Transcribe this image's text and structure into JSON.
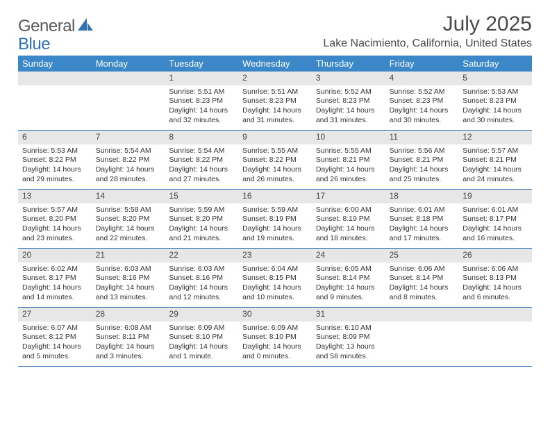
{
  "logo": {
    "text1": "General",
    "text2": "Blue"
  },
  "title": "July 2025",
  "location": "Lake Nacimiento, California, United States",
  "colors": {
    "header_bg": "#3b87c8",
    "header_text": "#ffffff",
    "dayrow_bg": "#e7e7e7",
    "divider": "#2e72b5",
    "body_text": "#333333",
    "logo_gray": "#5a5a5a",
    "logo_blue": "#2e72b5"
  },
  "typography": {
    "title_fontsize": 30,
    "location_fontsize": 16,
    "header_fontsize": 13,
    "daynum_fontsize": 12,
    "body_fontsize": 10.5
  },
  "day_names": [
    "Sunday",
    "Monday",
    "Tuesday",
    "Wednesday",
    "Thursday",
    "Friday",
    "Saturday"
  ],
  "weeks": [
    [
      {
        "num": "",
        "sunrise": "",
        "sunset": "",
        "daylight": ""
      },
      {
        "num": "",
        "sunrise": "",
        "sunset": "",
        "daylight": ""
      },
      {
        "num": "1",
        "sunrise": "Sunrise: 5:51 AM",
        "sunset": "Sunset: 8:23 PM",
        "daylight": "Daylight: 14 hours and 32 minutes."
      },
      {
        "num": "2",
        "sunrise": "Sunrise: 5:51 AM",
        "sunset": "Sunset: 8:23 PM",
        "daylight": "Daylight: 14 hours and 31 minutes."
      },
      {
        "num": "3",
        "sunrise": "Sunrise: 5:52 AM",
        "sunset": "Sunset: 8:23 PM",
        "daylight": "Daylight: 14 hours and 31 minutes."
      },
      {
        "num": "4",
        "sunrise": "Sunrise: 5:52 AM",
        "sunset": "Sunset: 8:23 PM",
        "daylight": "Daylight: 14 hours and 30 minutes."
      },
      {
        "num": "5",
        "sunrise": "Sunrise: 5:53 AM",
        "sunset": "Sunset: 8:23 PM",
        "daylight": "Daylight: 14 hours and 30 minutes."
      }
    ],
    [
      {
        "num": "6",
        "sunrise": "Sunrise: 5:53 AM",
        "sunset": "Sunset: 8:22 PM",
        "daylight": "Daylight: 14 hours and 29 minutes."
      },
      {
        "num": "7",
        "sunrise": "Sunrise: 5:54 AM",
        "sunset": "Sunset: 8:22 PM",
        "daylight": "Daylight: 14 hours and 28 minutes."
      },
      {
        "num": "8",
        "sunrise": "Sunrise: 5:54 AM",
        "sunset": "Sunset: 8:22 PM",
        "daylight": "Daylight: 14 hours and 27 minutes."
      },
      {
        "num": "9",
        "sunrise": "Sunrise: 5:55 AM",
        "sunset": "Sunset: 8:22 PM",
        "daylight": "Daylight: 14 hours and 26 minutes."
      },
      {
        "num": "10",
        "sunrise": "Sunrise: 5:55 AM",
        "sunset": "Sunset: 8:21 PM",
        "daylight": "Daylight: 14 hours and 26 minutes."
      },
      {
        "num": "11",
        "sunrise": "Sunrise: 5:56 AM",
        "sunset": "Sunset: 8:21 PM",
        "daylight": "Daylight: 14 hours and 25 minutes."
      },
      {
        "num": "12",
        "sunrise": "Sunrise: 5:57 AM",
        "sunset": "Sunset: 8:21 PM",
        "daylight": "Daylight: 14 hours and 24 minutes."
      }
    ],
    [
      {
        "num": "13",
        "sunrise": "Sunrise: 5:57 AM",
        "sunset": "Sunset: 8:20 PM",
        "daylight": "Daylight: 14 hours and 23 minutes."
      },
      {
        "num": "14",
        "sunrise": "Sunrise: 5:58 AM",
        "sunset": "Sunset: 8:20 PM",
        "daylight": "Daylight: 14 hours and 22 minutes."
      },
      {
        "num": "15",
        "sunrise": "Sunrise: 5:59 AM",
        "sunset": "Sunset: 8:20 PM",
        "daylight": "Daylight: 14 hours and 21 minutes."
      },
      {
        "num": "16",
        "sunrise": "Sunrise: 5:59 AM",
        "sunset": "Sunset: 8:19 PM",
        "daylight": "Daylight: 14 hours and 19 minutes."
      },
      {
        "num": "17",
        "sunrise": "Sunrise: 6:00 AM",
        "sunset": "Sunset: 8:19 PM",
        "daylight": "Daylight: 14 hours and 18 minutes."
      },
      {
        "num": "18",
        "sunrise": "Sunrise: 6:01 AM",
        "sunset": "Sunset: 8:18 PM",
        "daylight": "Daylight: 14 hours and 17 minutes."
      },
      {
        "num": "19",
        "sunrise": "Sunrise: 6:01 AM",
        "sunset": "Sunset: 8:17 PM",
        "daylight": "Daylight: 14 hours and 16 minutes."
      }
    ],
    [
      {
        "num": "20",
        "sunrise": "Sunrise: 6:02 AM",
        "sunset": "Sunset: 8:17 PM",
        "daylight": "Daylight: 14 hours and 14 minutes."
      },
      {
        "num": "21",
        "sunrise": "Sunrise: 6:03 AM",
        "sunset": "Sunset: 8:16 PM",
        "daylight": "Daylight: 14 hours and 13 minutes."
      },
      {
        "num": "22",
        "sunrise": "Sunrise: 6:03 AM",
        "sunset": "Sunset: 8:16 PM",
        "daylight": "Daylight: 14 hours and 12 minutes."
      },
      {
        "num": "23",
        "sunrise": "Sunrise: 6:04 AM",
        "sunset": "Sunset: 8:15 PM",
        "daylight": "Daylight: 14 hours and 10 minutes."
      },
      {
        "num": "24",
        "sunrise": "Sunrise: 6:05 AM",
        "sunset": "Sunset: 8:14 PM",
        "daylight": "Daylight: 14 hours and 9 minutes."
      },
      {
        "num": "25",
        "sunrise": "Sunrise: 6:06 AM",
        "sunset": "Sunset: 8:14 PM",
        "daylight": "Daylight: 14 hours and 8 minutes."
      },
      {
        "num": "26",
        "sunrise": "Sunrise: 6:06 AM",
        "sunset": "Sunset: 8:13 PM",
        "daylight": "Daylight: 14 hours and 6 minutes."
      }
    ],
    [
      {
        "num": "27",
        "sunrise": "Sunrise: 6:07 AM",
        "sunset": "Sunset: 8:12 PM",
        "daylight": "Daylight: 14 hours and 5 minutes."
      },
      {
        "num": "28",
        "sunrise": "Sunrise: 6:08 AM",
        "sunset": "Sunset: 8:11 PM",
        "daylight": "Daylight: 14 hours and 3 minutes."
      },
      {
        "num": "29",
        "sunrise": "Sunrise: 6:09 AM",
        "sunset": "Sunset: 8:10 PM",
        "daylight": "Daylight: 14 hours and 1 minute."
      },
      {
        "num": "30",
        "sunrise": "Sunrise: 6:09 AM",
        "sunset": "Sunset: 8:10 PM",
        "daylight": "Daylight: 14 hours and 0 minutes."
      },
      {
        "num": "31",
        "sunrise": "Sunrise: 6:10 AM",
        "sunset": "Sunset: 8:09 PM",
        "daylight": "Daylight: 13 hours and 58 minutes."
      },
      {
        "num": "",
        "sunrise": "",
        "sunset": "",
        "daylight": ""
      },
      {
        "num": "",
        "sunrise": "",
        "sunset": "",
        "daylight": ""
      }
    ]
  ]
}
